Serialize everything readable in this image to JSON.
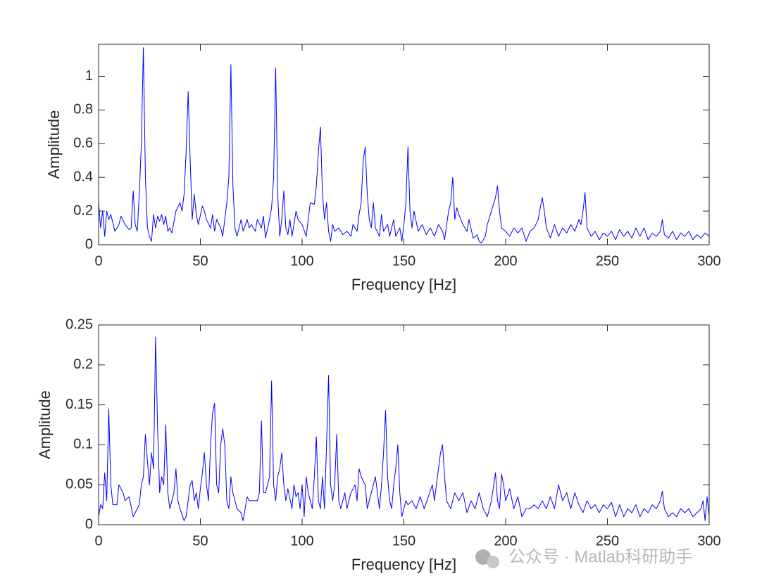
{
  "chart_data": [
    {
      "type": "line",
      "xlabel": "Frequency [Hz]",
      "ylabel": "Amplitude",
      "color": "#0000ff",
      "xlim": [
        0,
        300
      ],
      "xticks": [
        0,
        50,
        100,
        150,
        200,
        250,
        300
      ],
      "ylim": [
        0,
        1.19
      ],
      "yticks": [
        0,
        0.2,
        0.4,
        0.6,
        0.8,
        1
      ],
      "x": [
        0,
        1,
        2,
        3,
        4,
        5,
        6,
        8,
        10,
        11,
        13,
        15,
        16,
        17,
        18,
        19,
        20,
        21,
        22,
        23,
        24,
        25,
        26,
        27,
        28,
        29,
        30,
        31,
        32,
        33,
        34,
        35,
        36,
        38,
        40,
        41,
        42,
        43,
        44,
        45,
        46,
        47,
        48,
        49,
        51,
        52,
        53,
        55,
        56,
        57,
        58,
        60,
        61,
        62,
        63,
        64,
        65,
        66,
        67,
        68,
        70,
        71,
        73,
        74,
        75,
        77,
        78,
        80,
        81,
        82,
        84,
        85,
        86,
        87,
        88,
        89,
        90,
        91,
        92,
        93,
        94,
        95,
        96,
        97,
        98,
        100,
        102,
        103,
        104,
        106,
        107,
        108,
        109,
        110,
        111,
        112,
        113,
        114,
        115,
        116,
        118,
        120,
        122,
        124,
        125,
        127,
        128,
        129,
        130,
        131,
        132,
        133,
        134,
        135,
        136,
        138,
        139,
        140,
        142,
        143,
        145,
        146,
        148,
        149,
        150,
        151,
        152,
        153,
        154,
        155,
        157,
        159,
        161,
        163,
        165,
        167,
        169,
        170,
        171,
        172,
        173,
        174,
        175,
        176,
        177,
        179,
        181,
        182,
        184,
        186,
        187,
        188,
        190,
        191,
        193,
        195,
        196,
        197,
        198,
        200,
        202,
        204,
        206,
        208,
        210,
        212,
        214,
        216,
        217,
        218,
        219,
        220,
        222,
        224,
        226,
        228,
        230,
        232,
        234,
        236,
        237,
        238,
        239,
        240,
        242,
        244,
        246,
        248,
        250,
        252,
        254,
        256,
        258,
        260,
        262,
        264,
        266,
        268,
        270,
        272,
        274,
        276,
        277,
        278,
        280,
        282,
        284,
        286,
        288,
        290,
        292,
        294,
        296,
        298,
        300
      ],
      "values": [
        0.25,
        0.1,
        0.2,
        0.05,
        0.2,
        0.15,
        0.18,
        0.08,
        0.12,
        0.17,
        0.12,
        0.09,
        0.1,
        0.32,
        0.12,
        0.08,
        0.3,
        0.6,
        1.17,
        0.4,
        0.1,
        0.05,
        0.02,
        0.18,
        0.1,
        0.17,
        0.14,
        0.18,
        0.12,
        0.17,
        0.08,
        0.1,
        0.07,
        0.2,
        0.25,
        0.2,
        0.3,
        0.55,
        0.91,
        0.5,
        0.15,
        0.3,
        0.18,
        0.12,
        0.23,
        0.2,
        0.15,
        0.1,
        0.18,
        0.08,
        0.15,
        0.1,
        0.05,
        0.15,
        0.25,
        0.4,
        1.07,
        0.35,
        0.1,
        0.05,
        0.15,
        0.08,
        0.15,
        0.1,
        0.12,
        0.08,
        0.15,
        0.1,
        0.17,
        0.04,
        0.15,
        0.22,
        0.4,
        1.05,
        0.3,
        0.05,
        0.15,
        0.32,
        0.1,
        0.06,
        0.15,
        0.05,
        0.12,
        0.2,
        0.15,
        0.12,
        0.05,
        0.15,
        0.25,
        0.24,
        0.35,
        0.55,
        0.7,
        0.3,
        0.15,
        0.25,
        0.08,
        0.02,
        0.12,
        0.08,
        0.1,
        0.06,
        0.08,
        0.05,
        0.12,
        0.08,
        0.18,
        0.25,
        0.5,
        0.58,
        0.3,
        0.15,
        0.1,
        0.25,
        0.1,
        0.05,
        0.18,
        0.08,
        0.12,
        0.05,
        0.15,
        0.05,
        0.1,
        0.02,
        0.12,
        0.25,
        0.58,
        0.2,
        0.1,
        0.2,
        0.08,
        0.12,
        0.06,
        0.1,
        0.05,
        0.12,
        0.08,
        0.03,
        0.12,
        0.2,
        0.25,
        0.4,
        0.15,
        0.22,
        0.18,
        0.12,
        0.08,
        0.15,
        0.04,
        0.06,
        0.02,
        0.01,
        0.05,
        0.12,
        0.2,
        0.28,
        0.35,
        0.2,
        0.1,
        0.08,
        0.05,
        0.1,
        0.07,
        0.1,
        0.02,
        0.08,
        0.1,
        0.15,
        0.22,
        0.28,
        0.2,
        0.1,
        0.04,
        0.12,
        0.05,
        0.1,
        0.07,
        0.12,
        0.08,
        0.15,
        0.12,
        0.2,
        0.31,
        0.1,
        0.05,
        0.08,
        0.03,
        0.07,
        0.05,
        0.08,
        0.03,
        0.09,
        0.05,
        0.08,
        0.04,
        0.1,
        0.05,
        0.1,
        0.03,
        0.07,
        0.05,
        0.08,
        0.15,
        0.06,
        0.04,
        0.08,
        0.03,
        0.07,
        0.05,
        0.08,
        0.03,
        0.06,
        0.04,
        0.07,
        0.05
      ]
    },
    {
      "type": "line",
      "xlabel": "Frequency [Hz]",
      "ylabel": "Amplitude",
      "color": "#0000ff",
      "xlim": [
        0,
        300
      ],
      "xticks": [
        0,
        50,
        100,
        150,
        200,
        250,
        300
      ],
      "ylim": [
        0,
        0.25
      ],
      "yticks": [
        0,
        0.05,
        0.1,
        0.15,
        0.2,
        0.25
      ],
      "x": [
        0,
        1,
        2,
        3,
        4,
        5,
        6,
        7,
        9,
        10,
        12,
        13,
        15,
        17,
        19,
        20,
        21,
        22,
        23,
        24,
        25,
        26,
        27,
        28,
        29,
        30,
        31,
        32,
        33,
        34,
        35,
        37,
        38,
        39,
        40,
        42,
        43,
        45,
        46,
        47,
        48,
        49,
        50,
        51,
        52,
        53,
        54,
        55,
        56,
        57,
        58,
        59,
        60,
        61,
        62,
        63,
        64,
        65,
        66,
        68,
        70,
        71,
        72,
        73,
        74,
        76,
        78,
        79,
        80,
        81,
        82,
        84,
        85,
        86,
        87,
        88,
        89,
        90,
        91,
        92,
        93,
        95,
        96,
        97,
        98,
        99,
        100,
        101,
        102,
        103,
        105,
        106,
        107,
        108,
        109,
        110,
        111,
        112,
        113,
        114,
        115,
        116,
        117,
        118,
        119,
        121,
        122,
        124,
        126,
        127,
        128,
        129,
        131,
        132,
        134,
        136,
        137,
        138,
        139,
        140,
        141,
        142,
        143,
        144,
        145,
        146,
        147,
        148,
        149,
        151,
        152,
        154,
        156,
        158,
        160,
        162,
        164,
        165,
        166,
        167,
        168,
        169,
        170,
        171,
        173,
        175,
        177,
        179,
        181,
        183,
        185,
        187,
        189,
        191,
        193,
        195,
        196,
        197,
        198,
        199,
        200,
        202,
        204,
        206,
        208,
        210,
        212,
        214,
        216,
        218,
        220,
        222,
        224,
        226,
        228,
        230,
        232,
        234,
        236,
        238,
        240,
        242,
        244,
        246,
        248,
        250,
        252,
        254,
        256,
        258,
        260,
        262,
        264,
        266,
        268,
        270,
        272,
        274,
        276,
        277,
        278,
        280,
        282,
        284,
        286,
        288,
        290,
        292,
        294,
        296,
        297,
        298,
        299,
        300
      ],
      "values": [
        0.01,
        0.025,
        0.02,
        0.065,
        0.03,
        0.145,
        0.05,
        0.025,
        0.025,
        0.05,
        0.04,
        0.03,
        0.035,
        0.01,
        0.02,
        0.025,
        0.05,
        0.06,
        0.113,
        0.08,
        0.05,
        0.09,
        0.07,
        0.235,
        0.12,
        0.04,
        0.06,
        0.05,
        0.125,
        0.04,
        0.02,
        0.04,
        0.07,
        0.03,
        0.02,
        0.005,
        0.01,
        0.05,
        0.055,
        0.03,
        0.04,
        0.02,
        0.045,
        0.065,
        0.09,
        0.05,
        0.03,
        0.1,
        0.14,
        0.152,
        0.05,
        0.04,
        0.1,
        0.12,
        0.1,
        0.03,
        0.02,
        0.06,
        0.04,
        0.02,
        0.015,
        0.005,
        0.02,
        0.035,
        0.03,
        0.03,
        0.03,
        0.04,
        0.13,
        0.04,
        0.04,
        0.06,
        0.18,
        0.05,
        0.03,
        0.06,
        0.07,
        0.09,
        0.05,
        0.03,
        0.045,
        0.02,
        0.05,
        0.035,
        0.04,
        0.02,
        0.05,
        0.01,
        0.06,
        0.04,
        0.02,
        0.06,
        0.11,
        0.03,
        0.02,
        0.06,
        0.02,
        0.1,
        0.187,
        0.05,
        0.03,
        0.05,
        0.113,
        0.03,
        0.02,
        0.04,
        0.02,
        0.04,
        0.05,
        0.03,
        0.07,
        0.06,
        0.05,
        0.02,
        0.04,
        0.06,
        0.04,
        0.02,
        0.05,
        0.09,
        0.143,
        0.06,
        0.03,
        0.02,
        0.05,
        0.07,
        0.1,
        0.04,
        0.01,
        0.03,
        0.025,
        0.03,
        0.02,
        0.035,
        0.02,
        0.035,
        0.05,
        0.03,
        0.05,
        0.07,
        0.09,
        0.1,
        0.06,
        0.03,
        0.02,
        0.04,
        0.03,
        0.04,
        0.015,
        0.03,
        0.02,
        0.04,
        0.02,
        0.01,
        0.03,
        0.065,
        0.03,
        0.02,
        0.063,
        0.05,
        0.03,
        0.045,
        0.02,
        0.035,
        0.01,
        0.02,
        0.02,
        0.025,
        0.02,
        0.03,
        0.02,
        0.035,
        0.02,
        0.05,
        0.03,
        0.04,
        0.02,
        0.04,
        0.025,
        0.015,
        0.03,
        0.02,
        0.025,
        0.015,
        0.025,
        0.02,
        0.028,
        0.01,
        0.025,
        0.01,
        0.02,
        0.015,
        0.025,
        0.01,
        0.02,
        0.015,
        0.025,
        0.02,
        0.03,
        0.042,
        0.02,
        0.01,
        0.015,
        0.01,
        0.02,
        0.015,
        0.02,
        0.01,
        0.015,
        0.02,
        0.03,
        0.005,
        0.035,
        0.01
      ]
    }
  ],
  "watermark": "公众号 · Matlab科研助手"
}
